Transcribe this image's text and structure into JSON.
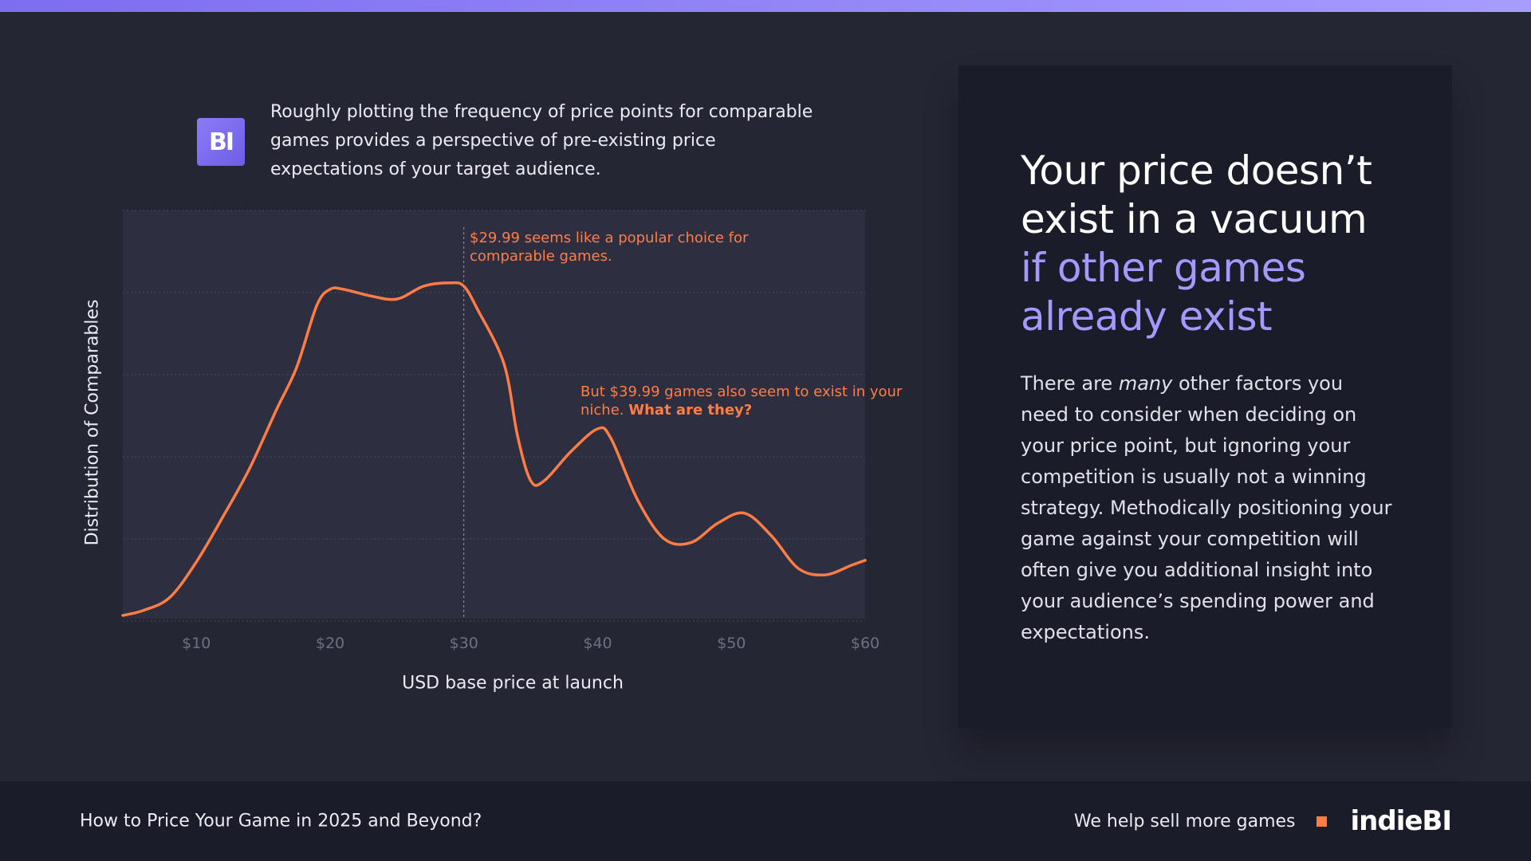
{
  "intro_text": "Roughly plotting the frequency of price points for comparable games provides a perspective of pre-existing price expectations of your target audience.",
  "logo_badge_text": "BI",
  "chart_data": {
    "type": "line",
    "xlabel": "USD base price at launch",
    "ylabel": "Distribution of Comparables",
    "xlim": [
      4.5,
      60
    ],
    "ylim": [
      0,
      1
    ],
    "xticks": [
      10,
      20,
      30,
      40,
      50,
      60
    ],
    "tick_labels": [
      "$10",
      "$20",
      "$30",
      "$40",
      "$50",
      "$60"
    ],
    "grid": true,
    "line_color": "#ff7d45",
    "series": [
      {
        "x": [
          4.5,
          6,
          8,
          10,
          12,
          14,
          16,
          17.5,
          19,
          20,
          21,
          23,
          25,
          27,
          29,
          29.99,
          31,
          33,
          34,
          35,
          36,
          38,
          40,
          41,
          43,
          45,
          47,
          49,
          51,
          53,
          55,
          57,
          59,
          60
        ],
        "y": [
          0.005,
          0.02,
          0.06,
          0.17,
          0.31,
          0.46,
          0.64,
          0.77,
          0.96,
          1.01,
          1.01,
          0.99,
          0.98,
          1.02,
          1.03,
          1.02,
          0.95,
          0.78,
          0.56,
          0.42,
          0.42,
          0.51,
          0.58,
          0.55,
          0.36,
          0.24,
          0.23,
          0.29,
          0.32,
          0.25,
          0.15,
          0.13,
          0.16,
          0.175
        ]
      }
    ],
    "reference_line": {
      "x": 29.99
    },
    "annotations": [
      {
        "text": "$29.99 seems like a popular choice for comparable games."
      },
      {
        "text": "But $39.99 games also seem to exist in your niche.",
        "emphasis": "What are they?"
      }
    ]
  },
  "card": {
    "headline_main": "Your price doesn’t exist in a vacuum",
    "headline_accent": "if other games already exist",
    "body_before": "There are ",
    "body_em": "many",
    "body_after": " other factors you need to consider when deciding on your price point, but ignoring your competition is usually not a winning strategy. Methodically positioning your game against your competition will often give you additional insight into your audience’s spending power and expectations."
  },
  "footer": {
    "title": "How to Price Your Game in 2025 and Beyond?",
    "tagline": "We help sell more games",
    "brand": "indieBI"
  },
  "colors": {
    "background": "#252634",
    "card": "#1b1c29",
    "accent_purple": "#a598ff",
    "accent_orange": "#ff7d45"
  }
}
